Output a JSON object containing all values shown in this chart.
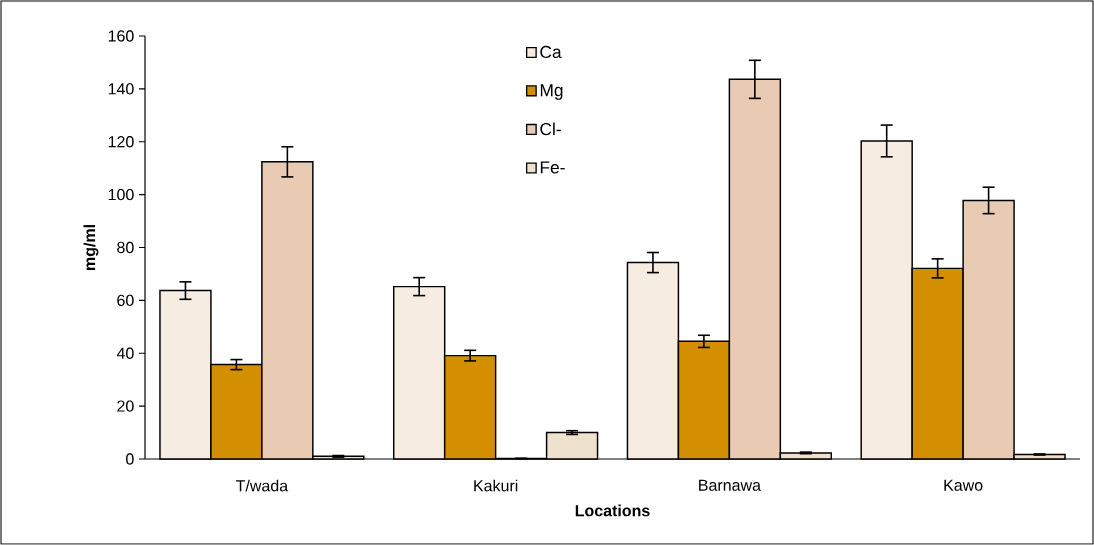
{
  "chart_data": {
    "type": "bar",
    "xlabel": "Locations",
    "ylabel": "mg/ml",
    "categories": [
      "T/wada",
      "Kakuri",
      "Barnawa",
      "Kawo"
    ],
    "series": [
      {
        "name": "Ca",
        "color": "#f6ece2",
        "values": [
          63.7,
          65.2,
          74.3,
          120.3
        ],
        "errors": [
          3.3,
          3.4,
          3.8,
          6.0
        ]
      },
      {
        "name": "Mg",
        "color": "#d48f00",
        "values": [
          35.7,
          39.1,
          44.5,
          72.1
        ],
        "errors": [
          1.9,
          2.0,
          2.3,
          3.6
        ]
      },
      {
        "name": "Cl-",
        "color": "#e9cbb4",
        "values": [
          112.4,
          0.2,
          143.6,
          97.8
        ],
        "errors": [
          5.7,
          null,
          7.2,
          5.0
        ]
      },
      {
        "name": "Fe-",
        "color": "#eee2ce",
        "values": [
          1.0,
          10.0,
          2.3,
          1.7
        ],
        "errors": [
          0.3,
          0.7,
          0.3,
          0.2
        ]
      }
    ],
    "ylim": [
      0,
      160
    ],
    "yticks": [
      0,
      20,
      40,
      60,
      80,
      100,
      120,
      140,
      160
    ],
    "grid": false,
    "legend": "top"
  }
}
